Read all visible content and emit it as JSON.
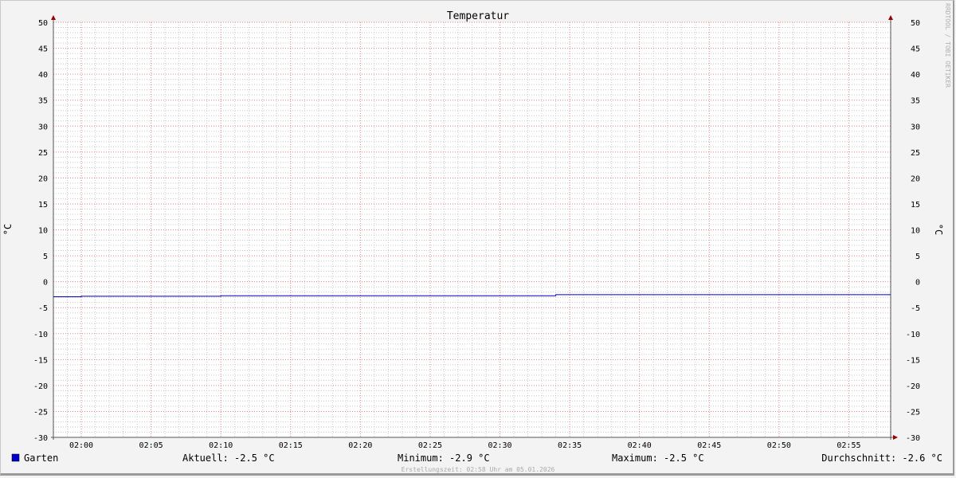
{
  "chart_data": {
    "type": "line",
    "title": "Temperatur",
    "ylabel": "°C",
    "ylabel_right": "°C",
    "watermark": "RRDTOOL / TOBI OETIKER",
    "ylim": [
      -30,
      50
    ],
    "yticks": [
      50,
      45,
      40,
      35,
      30,
      25,
      20,
      15,
      10,
      5,
      0,
      -5,
      -10,
      -15,
      -20,
      -25,
      -30
    ],
    "xlim": [
      "01:58",
      "02:58"
    ],
    "xticks": [
      "02:00",
      "02:05",
      "02:10",
      "02:15",
      "02:20",
      "02:25",
      "02:30",
      "02:35",
      "02:40",
      "02:45",
      "02:50",
      "02:55"
    ],
    "grid": true,
    "series": [
      {
        "name": "Garten",
        "color": "#0000cc",
        "step": true,
        "points": [
          [
            "01:58",
            -2.9
          ],
          [
            "02:00",
            -2.8
          ],
          [
            "02:10",
            -2.7
          ],
          [
            "02:34",
            -2.5
          ],
          [
            "02:58",
            -2.5
          ]
        ]
      }
    ],
    "legend": {
      "placement": "bottom",
      "name": "Garten",
      "color": "#0000cc",
      "current": "Aktuell: -2.5 °C",
      "minimum": "Minimum: -2.9 °C",
      "maximum": "Maximum: -2.5 °C",
      "average": "Durchschnitt: -2.6 °C"
    },
    "footer": "Erstellungszeit: 02:58 Uhr am 05.01.2026",
    "colors": {
      "major_grid": "#e08080",
      "minor_grid": "#c8c8c8",
      "axis": "#555555",
      "arrow": "#990000",
      "background": "#ffffff"
    }
  }
}
